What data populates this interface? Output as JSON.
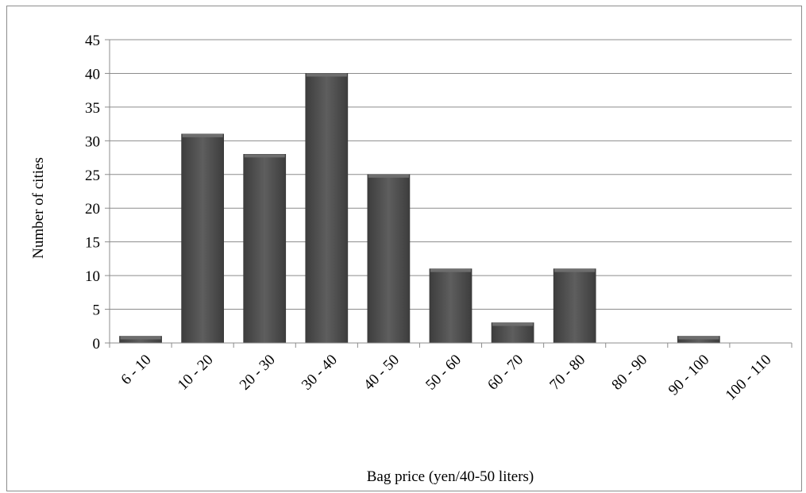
{
  "chart_data": {
    "type": "bar",
    "title": "",
    "xlabel": "Bag price (yen/40-50 liters)",
    "ylabel": "Number of cities",
    "categories": [
      "6 - 10",
      "10 - 20",
      "20 - 30",
      "30 - 40",
      "40 - 50",
      "50 - 60",
      "60 - 70",
      "70 - 80",
      "80 - 90",
      "90 - 100",
      "100 - 110"
    ],
    "values": [
      1,
      31,
      28,
      40,
      25,
      11,
      3,
      11,
      0,
      1,
      0
    ],
    "ylim": [
      0,
      45
    ],
    "yticks": [
      0,
      5,
      10,
      15,
      20,
      25,
      30,
      35,
      40,
      45
    ],
    "grid": true,
    "legend": "none",
    "colors": {
      "bar": "#555555",
      "bar_top": "#6e6e6e",
      "grid": "#8c8c8c",
      "axis": "#8c8c8c"
    }
  }
}
